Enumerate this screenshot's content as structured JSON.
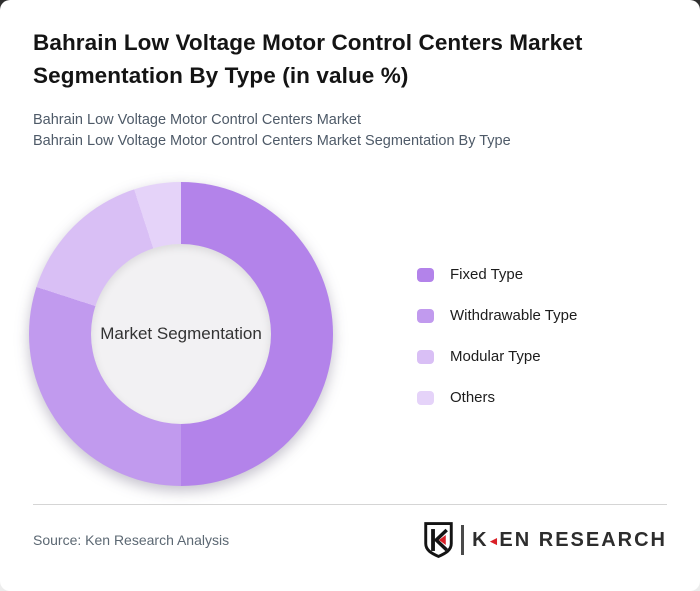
{
  "header": {
    "title_lines": [
      "Bahrain Low Voltage Motor Control Centers Market",
      "Segmentation By Type (in value %)"
    ],
    "subtitle_lines": [
      "Bahrain Low Voltage Motor Control Centers Market",
      "Bahrain Low Voltage Motor Control Centers Market Segmentation By Type"
    ]
  },
  "chart_data": {
    "type": "pie",
    "donut": true,
    "title": "Bahrain Low Voltage Motor Control Centers Market Segmentation By Type (in value %)",
    "center_label": "Market Segmentation",
    "categories": [
      "Fixed Type",
      "Withdrawable Type",
      "Modular Type",
      "Others"
    ],
    "values": [
      50,
      30,
      15,
      5
    ],
    "unit": "percent of value",
    "colors": [
      "#b383ea",
      "#c19aee",
      "#d9bff5",
      "#e5d3f9"
    ],
    "start_angle_deg": 0,
    "direction": "clockwise",
    "legend_position": "right",
    "hole_color": "#f2f1f3"
  },
  "footer": {
    "source": "Source: Ken Research Analysis",
    "logo": {
      "monogram": "K",
      "brand_first_letter": "K",
      "brand_arrow": "◄",
      "brand_rest": "EN RESEARCH",
      "accent_color": "#d92027"
    }
  }
}
